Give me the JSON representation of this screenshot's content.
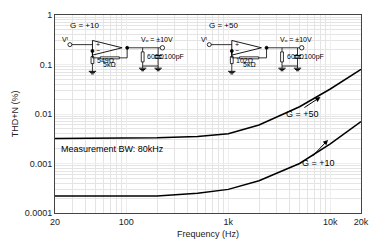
{
  "chart_data": {
    "type": "line",
    "log": true,
    "grid": true,
    "xlabel": "Frequency (Hz)",
    "ylabel": "THD+N (%)",
    "xlim": [
      20,
      20000
    ],
    "ylim": [
      0.0001,
      1
    ],
    "xticks": [
      20,
      100,
      {
        "value": 1000,
        "label": "1k"
      },
      {
        "value": 10000,
        "label": "10k"
      },
      {
        "value": 20000,
        "label": "20k"
      }
    ],
    "yticks": [
      0.0001,
      0.001,
      0.01,
      0.1,
      1
    ],
    "annotation": "Measurement BW: 80kHz",
    "series": [
      {
        "name": "G = +50",
        "color": "#000000",
        "x": [
          20,
          50,
          100,
          200,
          500,
          1000,
          2000,
          5000,
          10000,
          20000
        ],
        "values": [
          0.0032,
          0.0032,
          0.0032,
          0.0033,
          0.0035,
          0.004,
          0.006,
          0.014,
          0.032,
          0.08
        ]
      },
      {
        "name": "G = +10",
        "color": "#000000",
        "x": [
          20,
          50,
          100,
          200,
          500,
          1000,
          2000,
          5000,
          10000,
          20000
        ],
        "values": [
          0.00022,
          0.00022,
          0.00022,
          0.00022,
          0.00025,
          0.0003,
          0.00045,
          0.001,
          0.0025,
          0.007
        ]
      }
    ],
    "schematic": [
      {
        "gain": "G = +10",
        "r1": "549Ω",
        "r2": "5kΩ",
        "vout": "Vₒ = ±10V",
        "load": "600Ω",
        "cap": "100pF",
        "input": "Vᴵ",
        "plus": "+",
        "minus": "−"
      },
      {
        "gain": "G = +50",
        "r1": "102Ω",
        "r2": "5kΩ",
        "vout": "Vₒ = ±10V",
        "load": "600Ω",
        "cap": "100pF",
        "input": "Vᴵ",
        "plus": "+",
        "minus": "−"
      }
    ]
  }
}
